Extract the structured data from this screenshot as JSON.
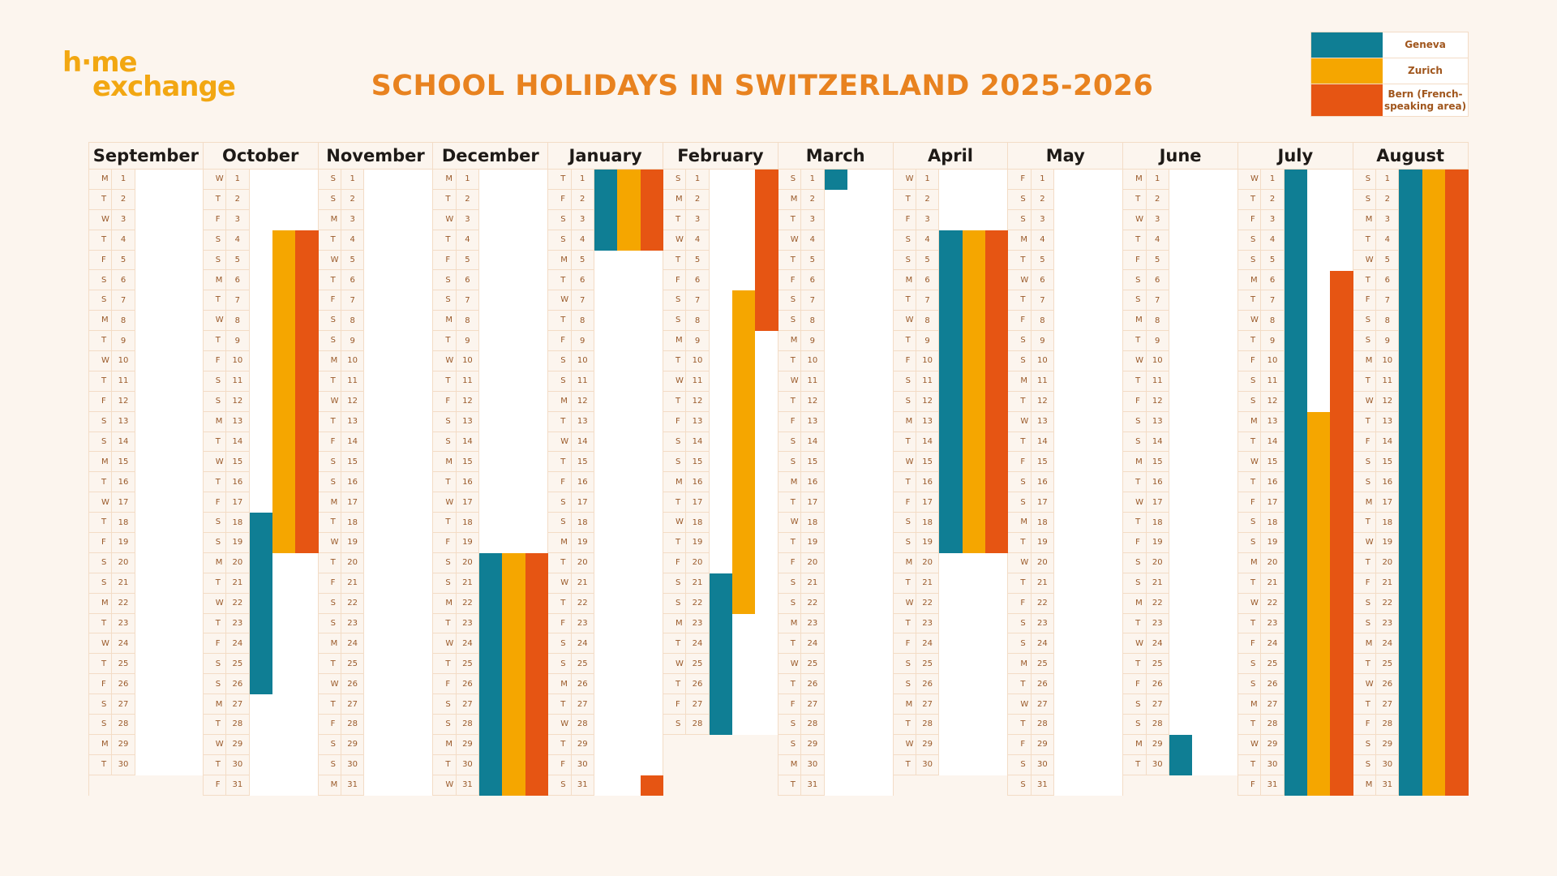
{
  "logo": {
    "line1": "h·me",
    "line2": "exchange"
  },
  "title": "SCHOOL HOLIDAYS IN SWITZERLAND 2025-2026",
  "legend": [
    {
      "key": "geneva",
      "label": "Geneva",
      "color": "#0f7e94"
    },
    {
      "key": "zurich",
      "label": "Zurich",
      "color": "#f5a600"
    },
    {
      "key": "bern",
      "label": "Bern (French-speaking area)",
      "color": "#e65513"
    }
  ],
  "months": [
    {
      "name": "September",
      "weekdays": "MTWTFSSMTWTFSSMTWTFSSMTWTFSSMT",
      "holidays": []
    },
    {
      "name": "October",
      "weekdays": "WTFSSMTWTFSSMTWTFSSMTWTFSSMTWTF",
      "holidays": [
        {
          "city": "zurich",
          "from": 4,
          "to": 19
        },
        {
          "city": "bern",
          "from": 4,
          "to": 19
        },
        {
          "city": "geneva",
          "from": 18,
          "to": 26
        }
      ]
    },
    {
      "name": "November",
      "weekdays": "SSMTWTFSSMTWTFSSMTWTFSSMTWTFSSM",
      "holidays": []
    },
    {
      "name": "December",
      "weekdays": "MTWTFSSMTWTFSSMTWTFSSMTWTFSSMTW",
      "holidays": [
        {
          "city": "geneva",
          "from": 20,
          "to": 31
        },
        {
          "city": "zurich",
          "from": 20,
          "to": 31
        },
        {
          "city": "bern",
          "from": 20,
          "to": 31
        }
      ]
    },
    {
      "name": "January",
      "weekdays": "TFSSMTWTFSSMTWTFSSMTWTFSSMTWTFS",
      "holidays": [
        {
          "city": "geneva",
          "from": 1,
          "to": 4
        },
        {
          "city": "zurich",
          "from": 1,
          "to": 4
        },
        {
          "city": "bern",
          "from": 1,
          "to": 4
        },
        {
          "city": "bern",
          "from": 31,
          "to": 31
        }
      ]
    },
    {
      "name": "February",
      "weekdays": "SMTWTFSSMTWTFSSMTWTFSSMTWTFS",
      "holidays": [
        {
          "city": "bern",
          "from": 1,
          "to": 8
        },
        {
          "city": "zurich",
          "from": 7,
          "to": 22
        },
        {
          "city": "geneva",
          "from": 21,
          "to": 28
        }
      ]
    },
    {
      "name": "March",
      "weekdays": "SMTWTFSSMTWTFSSMTWTFSSMTWTFSSMT",
      "holidays": [
        {
          "city": "geneva",
          "from": 1,
          "to": 1
        }
      ]
    },
    {
      "name": "April",
      "weekdays": "WTFSSMTWTFSSMTWTFSSMTWTFSSMTWT",
      "holidays": [
        {
          "city": "geneva",
          "from": 4,
          "to": 19
        },
        {
          "city": "zurich",
          "from": 4,
          "to": 19
        },
        {
          "city": "bern",
          "from": 4,
          "to": 19
        }
      ]
    },
    {
      "name": "May",
      "weekdays": "FSSMTWTFSSMTWTFSSMTWTFSSMTWTFSS",
      "holidays": []
    },
    {
      "name": "June",
      "weekdays": "MTWTFSSMTWTFSSMTWTFSSMTWTFSSMT",
      "holidays": [
        {
          "city": "geneva",
          "from": 29,
          "to": 30
        }
      ]
    },
    {
      "name": "July",
      "weekdays": "WTFSSMTWTFSSMTWTFSSMTWTFSSMTWTF",
      "holidays": [
        {
          "city": "geneva",
          "from": 1,
          "to": 31
        },
        {
          "city": "bern",
          "from": 6,
          "to": 31
        },
        {
          "city": "zurich",
          "from": 13,
          "to": 31
        }
      ]
    },
    {
      "name": "August",
      "weekdays": "SSMTWTFSSMTWTFSSMTWTFSSMTWTFSSM",
      "holidays": [
        {
          "city": "geneva",
          "from": 1,
          "to": 31
        },
        {
          "city": "zurich",
          "from": 1,
          "to": 31
        },
        {
          "city": "bern",
          "from": 1,
          "to": 31
        }
      ]
    }
  ]
}
